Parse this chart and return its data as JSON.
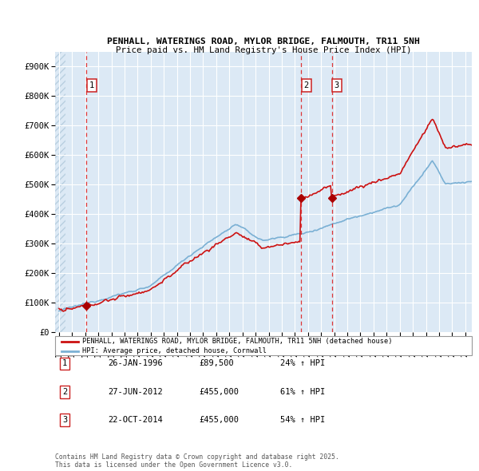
{
  "title1": "PENHALL, WATERINGS ROAD, MYLOR BRIDGE, FALMOUTH, TR11 5NH",
  "title2": "Price paid vs. HM Land Registry's House Price Index (HPI)",
  "xlim": [
    1993.7,
    2025.5
  ],
  "ylim": [
    0,
    950000
  ],
  "yticks": [
    0,
    100000,
    200000,
    300000,
    400000,
    500000,
    600000,
    700000,
    800000,
    900000
  ],
  "ytick_labels": [
    "£0",
    "£100K",
    "£200K",
    "£300K",
    "£400K",
    "£500K",
    "£600K",
    "£700K",
    "£800K",
    "£900K"
  ],
  "background_color": "#dce9f5",
  "hatch_color": "#b8cfe0",
  "grid_color": "#ffffff",
  "sale_dates": [
    1996.07,
    2012.49,
    2014.81
  ],
  "sale_prices": [
    89500,
    455000,
    455000
  ],
  "sale_labels": [
    "1",
    "2",
    "3"
  ],
  "vline_color": "#dd2222",
  "dot_color": "#aa0000",
  "legend_line1": "PENHALL, WATERINGS ROAD, MYLOR BRIDGE, FALMOUTH, TR11 5NH (detached house)",
  "legend_line2": "HPI: Average price, detached house, Cornwall",
  "table_data": [
    [
      "1",
      "26-JAN-1996",
      "£89,500",
      "24% ↑ HPI"
    ],
    [
      "2",
      "27-JUN-2012",
      "£455,000",
      "61% ↑ HPI"
    ],
    [
      "3",
      "22-OCT-2014",
      "£455,000",
      "54% ↑ HPI"
    ]
  ],
  "footer": "Contains HM Land Registry data © Crown copyright and database right 2025.\nThis data is licensed under the Open Government Licence v3.0.",
  "red_line_color": "#cc1111",
  "blue_line_color": "#7ab0d4",
  "label_box_color": "#cc2222"
}
